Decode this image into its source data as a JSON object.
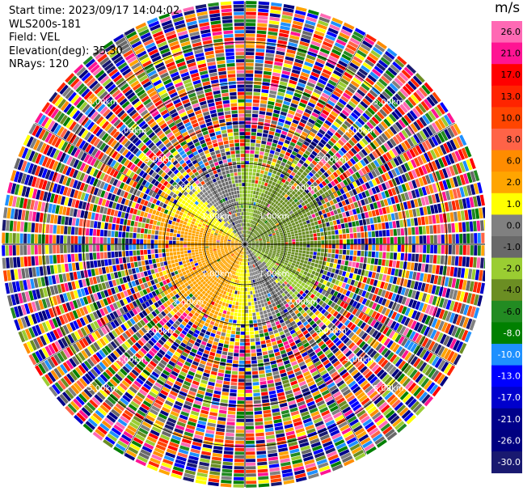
{
  "header": {
    "start_time": "Start time: 2023/09/17 14:04:02",
    "instrument": "WLS200s-181",
    "field": "Field: VEL",
    "elevation": "Elevation(deg): 35.30",
    "nrays": "NRays: 120"
  },
  "plot": {
    "max_range_km": 6.0,
    "range_rings_km": [
      1,
      2,
      3,
      4,
      5
    ],
    "ring_labels": [
      "1.00km",
      "2.00km",
      "3.00km",
      "4.00km",
      "5.00km"
    ],
    "spoke_angles_deg": [
      0,
      30,
      60,
      90,
      120,
      150,
      180,
      210,
      240,
      270,
      300,
      330
    ],
    "nrays": 120,
    "gate_km": 0.09,
    "quiet_radius_km": 2.5,
    "wind_direction_deg": 245,
    "wind_speed_ms": 3.2
  },
  "colorbar": {
    "unit": "m/s",
    "ticks": [
      "26.0",
      "21.0",
      "17.0",
      "13.0",
      "10.0",
      "8.0",
      "6.0",
      "2.0",
      "1.0",
      "0.0",
      "-1.0",
      "-2.0",
      "-4.0",
      "-6.0",
      "-8.0",
      "-10.0",
      "-13.0",
      "-17.0",
      "-21.0",
      "-26.0",
      "-30.0"
    ],
    "colors": [
      "#ff69b4",
      "#ff1493",
      "#ff0000",
      "#ff2400",
      "#ff4500",
      "#ff6347",
      "#ff8c00",
      "#ffa500",
      "#ffff00",
      "#808080",
      "#696969",
      "#9acd32",
      "#6b8e23",
      "#228b22",
      "#008000",
      "#1e90ff",
      "#0000ff",
      "#0000cd",
      "#00008b",
      "#000080",
      "#191970"
    ],
    "text_colors": [
      "#000000",
      "#000000",
      "#000000",
      "#000000",
      "#000000",
      "#000000",
      "#000000",
      "#000000",
      "#000000",
      "#000000",
      "#000000",
      "#000000",
      "#000000",
      "#000000",
      "#ffffff",
      "#ffffff",
      "#ffffff",
      "#ffffff",
      "#ffffff",
      "#ffffff",
      "#ffffff"
    ]
  }
}
